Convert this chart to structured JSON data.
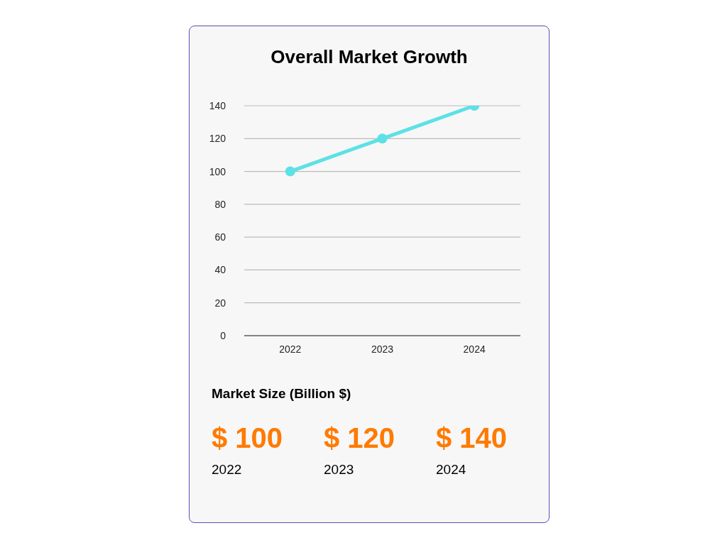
{
  "chart_data": {
    "type": "line",
    "title": "Overall Market Growth",
    "categories": [
      "2022",
      "2023",
      "2024"
    ],
    "series": [
      {
        "color": "#5ce1e6",
        "values": [
          100,
          120,
          140
        ],
        "value_labels": [
          "$ 100",
          "$ 120",
          "$ 140"
        ]
      }
    ],
    "ylim": [
      0,
      140
    ],
    "yticks": [
      0,
      20,
      40,
      60,
      80,
      100,
      120,
      140
    ],
    "grid": "y",
    "legend": false,
    "marker": "circle",
    "line_style": "solid",
    "annotations": [
      "Market Size (Billion $)"
    ]
  }
}
